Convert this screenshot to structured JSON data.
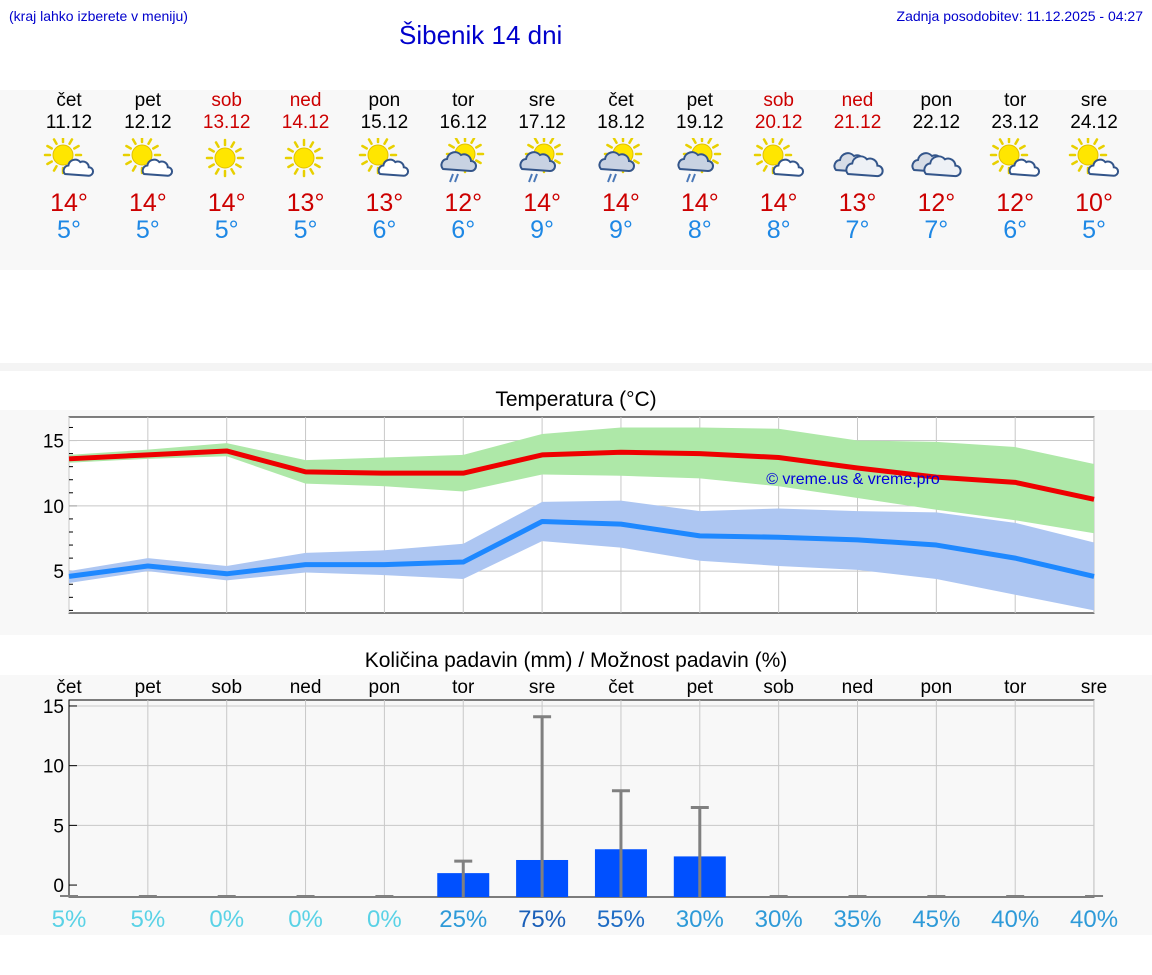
{
  "header": {
    "hint": "(kraj lahko izberete v meniju)",
    "title": "Šibenik 14 dni",
    "updated": "Zadnja posodobitev: 11.12.2025 - 04:27"
  },
  "days": [
    {
      "name": "čet",
      "date": "11.12",
      "weekend": false,
      "icon": "sun-cloud-icon",
      "max": "14°",
      "min": "5°"
    },
    {
      "name": "pet",
      "date": "12.12",
      "weekend": false,
      "icon": "sun-cloud-icon",
      "max": "14°",
      "min": "5°"
    },
    {
      "name": "sob",
      "date": "13.12",
      "weekend": true,
      "icon": "sun-icon",
      "max": "14°",
      "min": "5°"
    },
    {
      "name": "ned",
      "date": "14.12",
      "weekend": true,
      "icon": "sun-icon",
      "max": "13°",
      "min": "5°"
    },
    {
      "name": "pon",
      "date": "15.12",
      "weekend": false,
      "icon": "sun-cloud-icon",
      "max": "13°",
      "min": "6°"
    },
    {
      "name": "tor",
      "date": "16.12",
      "weekend": false,
      "icon": "sun-cloud-rain-icon",
      "max": "12°",
      "min": "6°"
    },
    {
      "name": "sre",
      "date": "17.12",
      "weekend": false,
      "icon": "sun-cloud-rain-icon",
      "max": "14°",
      "min": "9°"
    },
    {
      "name": "čet",
      "date": "18.12",
      "weekend": false,
      "icon": "sun-cloud-rain-icon",
      "max": "14°",
      "min": "9°"
    },
    {
      "name": "pet",
      "date": "19.12",
      "weekend": false,
      "icon": "sun-cloud-rain-icon",
      "max": "14°",
      "min": "8°"
    },
    {
      "name": "sob",
      "date": "20.12",
      "weekend": true,
      "icon": "sun-cloud-icon",
      "max": "14°",
      "min": "8°"
    },
    {
      "name": "ned",
      "date": "21.12",
      "weekend": true,
      "icon": "cloud-icon",
      "max": "13°",
      "min": "7°"
    },
    {
      "name": "pon",
      "date": "22.12",
      "weekend": false,
      "icon": "cloud-icon",
      "max": "12°",
      "min": "7°"
    },
    {
      "name": "tor",
      "date": "23.12",
      "weekend": false,
      "icon": "sun-cloud-icon",
      "max": "12°",
      "min": "6°"
    },
    {
      "name": "sre",
      "date": "24.12",
      "weekend": false,
      "icon": "sun-cloud-icon",
      "max": "10°",
      "min": "5°"
    }
  ],
  "colors": {
    "max_line": "#ee0000",
    "max_band": "#aee8a8",
    "min_line": "#1e88ff",
    "min_band": "#adc6f2",
    "bar": "#0050ff",
    "error": "#808080",
    "title": "#0000cc",
    "weekend": "#cc0000"
  },
  "chart_data": [
    {
      "type": "line",
      "title": "Temperatura (°C)",
      "watermark": "© vreme.us & vreme.pro",
      "ylim": [
        1.8,
        16.8
      ],
      "yticks": [
        5,
        10,
        15
      ],
      "series": [
        {
          "name": "max",
          "values": [
            13.6,
            13.9,
            14.2,
            12.6,
            12.5,
            12.5,
            13.9,
            14.1,
            14.0,
            13.7,
            12.9,
            12.2,
            11.8,
            10.5
          ],
          "upper": [
            13.9,
            14.3,
            14.8,
            13.5,
            13.7,
            13.9,
            15.5,
            16.0,
            16.0,
            15.9,
            15.0,
            14.9,
            14.5,
            13.2
          ],
          "lower": [
            13.3,
            13.6,
            13.8,
            11.7,
            11.5,
            11.1,
            12.4,
            12.3,
            12.1,
            11.5,
            10.6,
            9.7,
            8.9,
            7.9
          ]
        },
        {
          "name": "min",
          "values": [
            4.6,
            5.4,
            4.8,
            5.5,
            5.5,
            5.7,
            8.8,
            8.6,
            7.7,
            7.6,
            7.4,
            7.0,
            6.0,
            4.6
          ],
          "upper": [
            5.0,
            6.0,
            5.4,
            6.4,
            6.6,
            7.1,
            10.3,
            10.4,
            9.6,
            9.8,
            9.6,
            9.5,
            8.7,
            7.2
          ],
          "lower": [
            4.1,
            5.0,
            4.3,
            4.9,
            4.7,
            4.4,
            7.3,
            6.8,
            5.8,
            5.4,
            5.1,
            4.4,
            3.2,
            2.0
          ]
        }
      ]
    },
    {
      "type": "bar",
      "title": "Količina padavin (mm) / Možnost padavin (%)",
      "categories": [
        "čet",
        "pet",
        "sob",
        "ned",
        "pon",
        "tor",
        "sre",
        "čet",
        "pet",
        "sob",
        "ned",
        "pon",
        "tor",
        "sre"
      ],
      "ylim": [
        -1,
        15.5
      ],
      "yticks": [
        0,
        5,
        10,
        15
      ],
      "values": [
        0,
        0,
        0,
        0,
        0,
        1.0,
        2.1,
        3.0,
        2.4,
        0,
        0,
        0,
        0,
        0
      ],
      "error_high": [
        0,
        0,
        0,
        0,
        0,
        2.0,
        14.1,
        7.9,
        6.5,
        0,
        0,
        0,
        0,
        0
      ],
      "probability_labels": [
        "5%",
        "5%",
        "0%",
        "0%",
        "0%",
        "25%",
        "75%",
        "55%",
        "30%",
        "30%",
        "35%",
        "45%",
        "40%",
        "40%"
      ],
      "probability_colors": [
        "#5ad2e6",
        "#5ad2e6",
        "#5ad2e6",
        "#5ad2e6",
        "#5ad2e6",
        "#2e9ad8",
        "#1a5fb8",
        "#1e6cc4",
        "#2e9ad8",
        "#2e9ad8",
        "#2e9ad8",
        "#2e9ad8",
        "#2e9ad8",
        "#2e9ad8"
      ]
    }
  ]
}
